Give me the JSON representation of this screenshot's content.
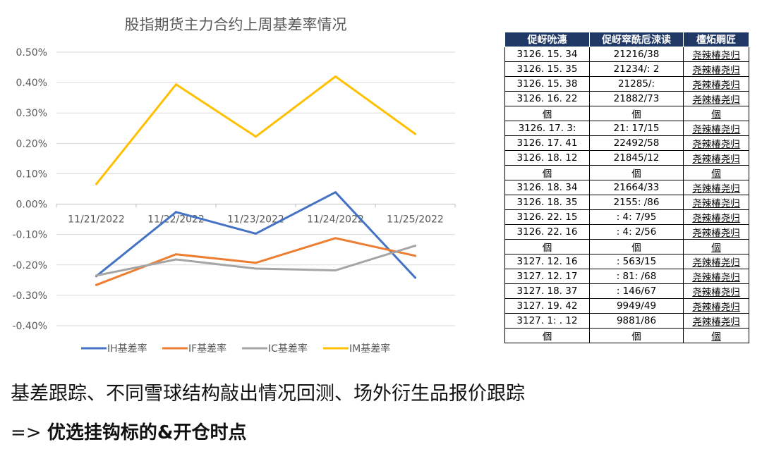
{
  "chart_data": {
    "type": "line",
    "title": "股指期货主力合约上周基差率情况",
    "categories": [
      "11/21/2022",
      "11/22/2022",
      "11/23/2022",
      "11/24/2022",
      "11/25/2022"
    ],
    "ylim": [
      -0.4,
      0.5
    ],
    "yticks": [
      "0.50%",
      "0.40%",
      "0.30%",
      "0.20%",
      "0.10%",
      "0.00%",
      "-0.10%",
      "-0.20%",
      "-0.30%",
      "-0.40%"
    ],
    "ytick_values": [
      0.5,
      0.4,
      0.3,
      0.2,
      0.1,
      0.0,
      -0.1,
      -0.2,
      -0.3,
      -0.4
    ],
    "grid": true,
    "legend_position": "bottom",
    "series": [
      {
        "name": "IH基差率",
        "color": "#4472C4",
        "values": [
          -0.237,
          -0.026,
          -0.097,
          0.039,
          -0.242
        ]
      },
      {
        "name": "IF基差率",
        "color": "#ED7D31",
        "values": [
          -0.266,
          -0.165,
          -0.193,
          -0.112,
          -0.17
        ]
      },
      {
        "name": "IC基差率",
        "color": "#A5A5A5",
        "values": [
          -0.235,
          -0.182,
          -0.212,
          -0.218,
          -0.137
        ]
      },
      {
        "name": "IM基差率",
        "color": "#FFC000",
        "values": [
          0.066,
          0.394,
          0.222,
          0.42,
          0.231
        ]
      }
    ]
  },
  "table": {
    "headers": [
      "促岈吮潓",
      "促岈窣酰卮涑读",
      "檀炻赒匠"
    ],
    "rows": [
      [
        "3126. 15. 34",
        "21216/38",
        "尧辣椿尧归"
      ],
      [
        "3126. 15. 35",
        "21234/: 2",
        "尧辣椿尧归"
      ],
      [
        "3126. 15. 38",
        "21285/:",
        "尧辣椿尧归"
      ],
      [
        "3126. 16. 22",
        "21882/73",
        "尧辣椿尧归"
      ],
      [
        "個",
        "個",
        "個"
      ],
      [
        "3126. 17. 3:",
        "21: 17/15",
        "尧辣椿尧归"
      ],
      [
        "3126. 17. 41",
        "22492/58",
        "尧辣椿尧归"
      ],
      [
        "3126. 18. 12",
        "21845/12",
        "尧辣椿尧归"
      ],
      [
        "個",
        "個",
        "個"
      ],
      [
        "3126. 18. 34",
        "21664/33",
        "尧辣椿尧归"
      ],
      [
        "3126. 18. 35",
        "2155: /86",
        "尧辣椿尧归"
      ],
      [
        "3126. 22. 15",
        ": 4: 7/95",
        "尧辣椿尧归"
      ],
      [
        "3126. 22. 16",
        ": 4: 2/56",
        "尧辣椿尧归"
      ],
      [
        "個",
        "個",
        "個"
      ],
      [
        "3127. 12. 16",
        ": 563/15",
        "尧辣椿尧归"
      ],
      [
        "3127. 12. 17",
        ": 81: /68",
        "尧辣椿尧归"
      ],
      [
        "3127. 18. 37",
        ": 146/67",
        "尧辣椿尧归"
      ],
      [
        "3127. 19. 42",
        "9949/49",
        "尧辣椿尧归"
      ],
      [
        "3127. 1: . 12",
        "9881/86",
        "尧辣椿尧归"
      ],
      [
        "個",
        "個",
        "個"
      ]
    ]
  },
  "caption": {
    "line1": "基差跟踪、不同雪球结构敲出情况回测、场外衍生品报价跟踪",
    "line2_arrow": "=>",
    "line2_bold": "优选挂钩标的&开仓时点"
  }
}
